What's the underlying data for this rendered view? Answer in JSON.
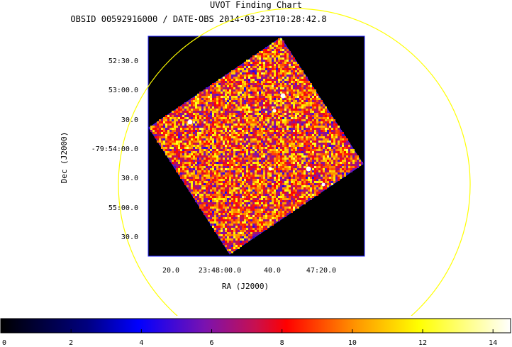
{
  "chart_data": {
    "type": "heatmap",
    "title": "UVOT Finding Chart",
    "subtitle": "OBSID 00592916000 / DATE-OBS 2014-03-23T10:28:42.8",
    "xlabel": "RA (J2000)",
    "ylabel": "Dec (J2000)",
    "x_tick_labels": [
      "20.0",
      "23:48:00.0",
      "40.0",
      "47:20.0"
    ],
    "y_tick_labels": [
      "52:30.0",
      "53:00.0",
      "30.0",
      "-79:54:00.0",
      "30.0",
      "55:00.0",
      "30.0"
    ],
    "colorbar": {
      "range": [
        0,
        14.5
      ],
      "ticks": [
        0,
        2,
        4,
        6,
        8,
        10,
        12,
        14
      ],
      "colormap": [
        "#000000",
        "#0000ff",
        "#ff0000",
        "#ffff00",
        "#ffffff"
      ]
    },
    "overlay_circle_color": "#ffff00",
    "frame_color": "#2020ff",
    "grid": false
  }
}
